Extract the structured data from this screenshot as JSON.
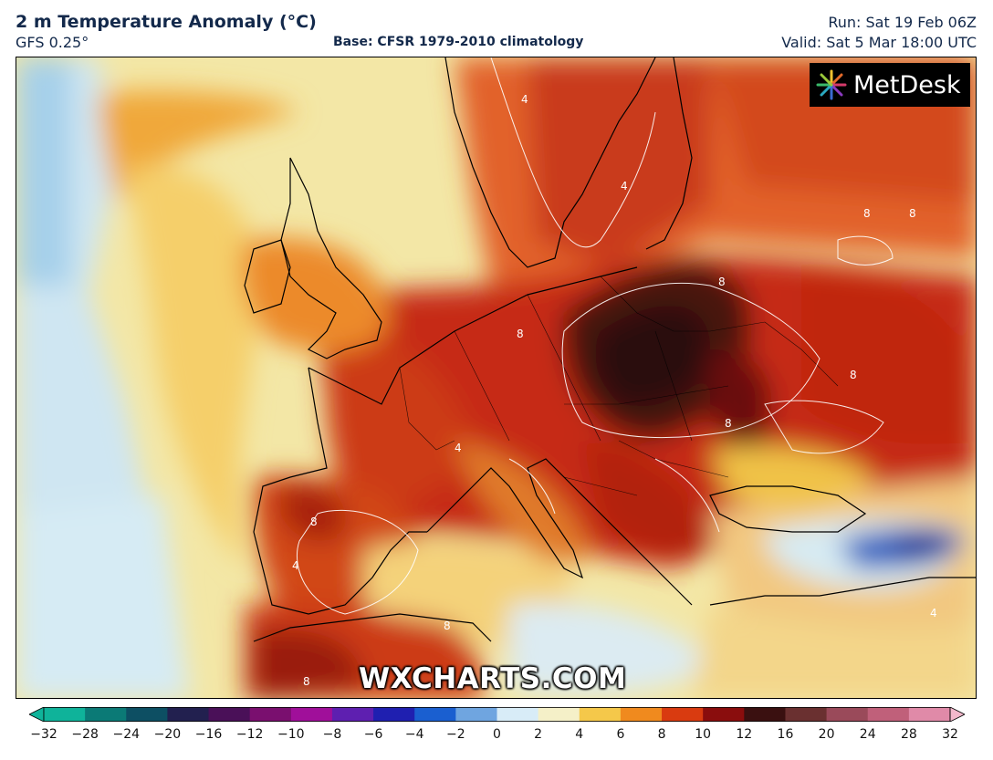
{
  "header": {
    "title": "2 m Temperature Anomaly (°C)",
    "model": "GFS 0.25°",
    "base": "Base: CFSR 1979-2010 climatology",
    "run": "Run: Sat 19 Feb 06Z",
    "valid": "Valid: Sat 5 Mar 18:00 UTC"
  },
  "logo": {
    "text": "MetDesk",
    "icon": "starburst-logo-icon"
  },
  "watermark": "WXCHARTS.COM",
  "contour_labels": [
    "4",
    "8"
  ],
  "colorbar": {
    "ticks": [
      "−32",
      "−28",
      "−24",
      "−20",
      "−16",
      "−12",
      "−10",
      "−8",
      "−6",
      "−4",
      "−2",
      "0",
      "2",
      "4",
      "6",
      "8",
      "10",
      "12",
      "16",
      "20",
      "24",
      "28",
      "32"
    ],
    "colors": [
      "#0fb39a",
      "#0b7a76",
      "#0d4f63",
      "#22204f",
      "#4a1058",
      "#7a0f6f",
      "#a00f9a",
      "#5e1fb0",
      "#1f1fb0",
      "#1a5fd0",
      "#6fa5e0",
      "#d8ecf7",
      "#f5f0c8",
      "#f5c84a",
      "#f08a1e",
      "#d93b10",
      "#8a0d0d",
      "#3a1010",
      "#6a3030",
      "#9a4a5a",
      "#c0607a",
      "#e08aa8",
      "#f4b8cc"
    ]
  }
}
